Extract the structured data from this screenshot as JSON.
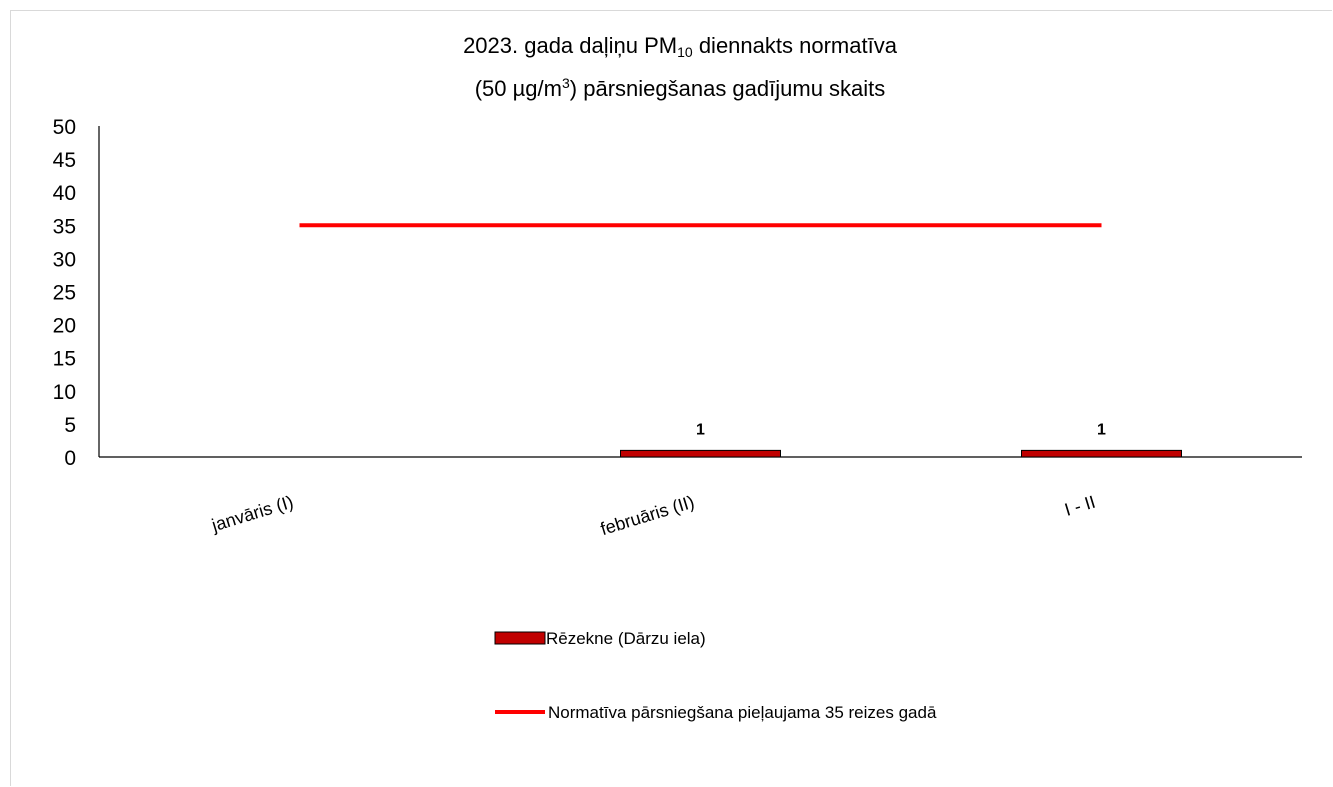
{
  "chart_data": {
    "type": "bar",
    "title": {
      "line1_a": "2023. gada daļiņu PM",
      "line1_sub": "10",
      "line1_b": " diennakts normatīva",
      "line2_a": "(50 µg/m",
      "line2_sup": "3",
      "line2_b": ") pārsniegšanas gadījumu skaits"
    },
    "categories": [
      "janvāris (I)",
      "februāris (II)",
      "I - II"
    ],
    "ylim": [
      0,
      50
    ],
    "yticks": [
      0,
      5,
      10,
      15,
      20,
      25,
      30,
      35,
      40,
      45,
      50
    ],
    "grid": false,
    "legend_position": "bottom",
    "series": [
      {
        "name": "Rēzekne (Dārzu iela)",
        "type": "bar",
        "color": "#c00000",
        "values": [
          0,
          1,
          1
        ],
        "data_labels": [
          "",
          "1",
          "1"
        ]
      },
      {
        "name": "Normatīva pārsniegšana pieļaujama 35 reizes gadā",
        "type": "line",
        "color": "#ff0000",
        "values": [
          35,
          35,
          35
        ]
      }
    ]
  }
}
